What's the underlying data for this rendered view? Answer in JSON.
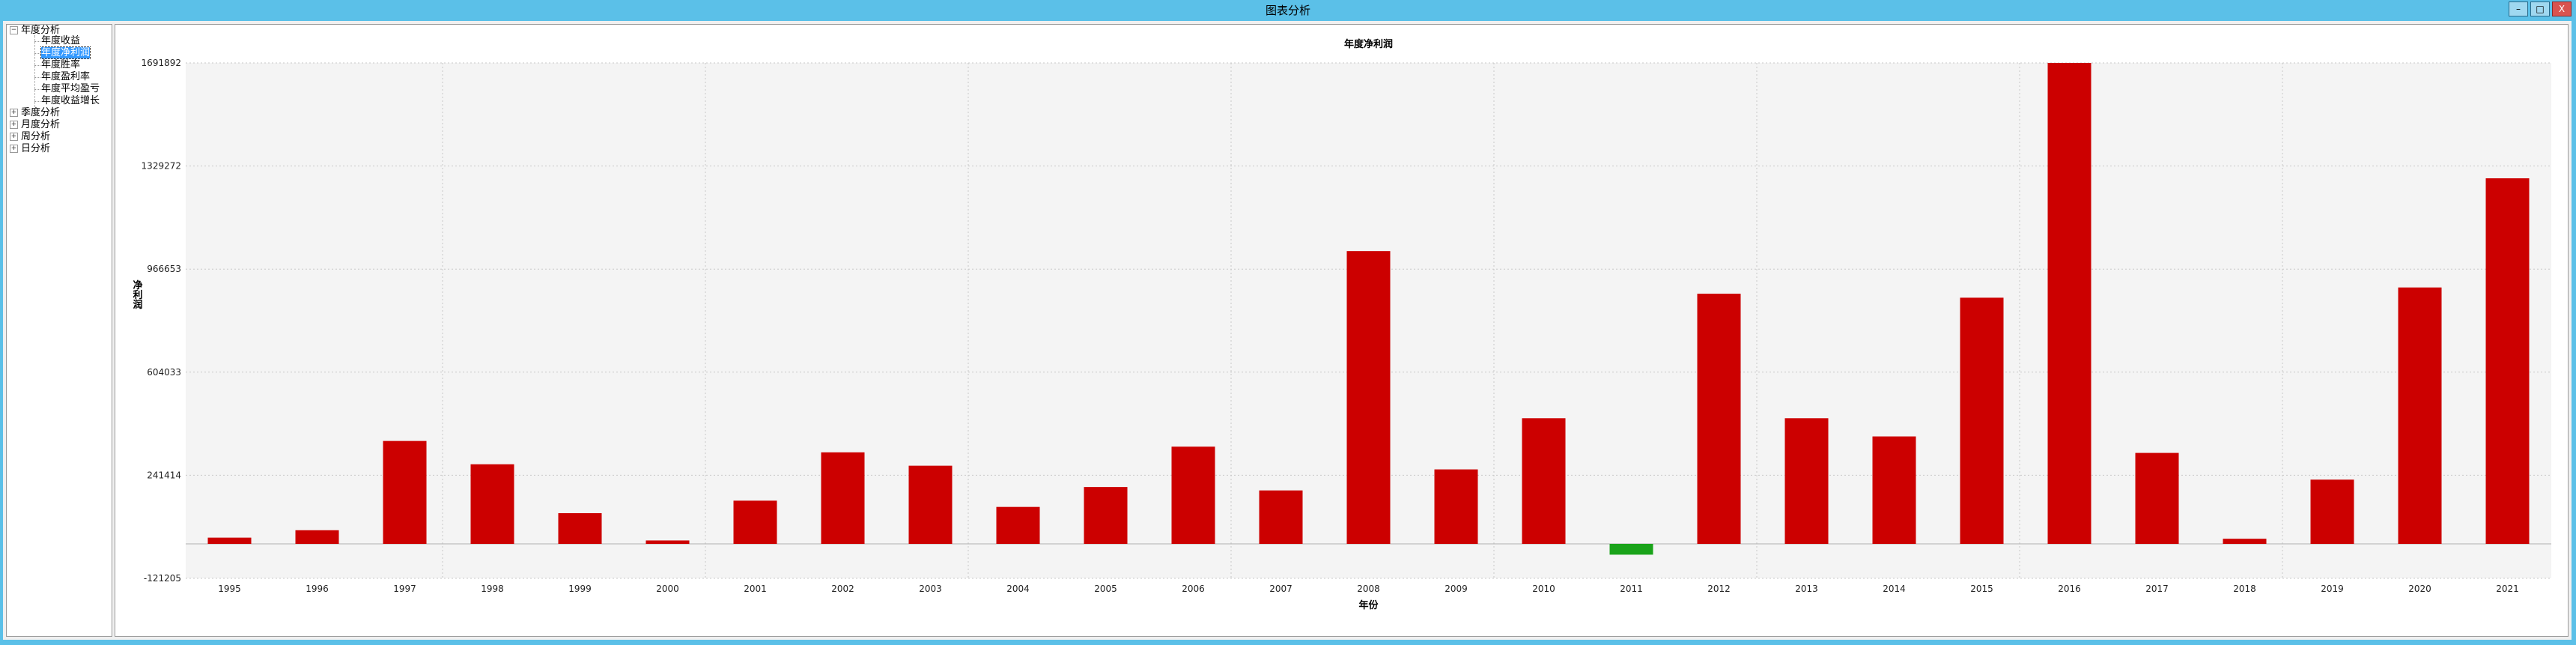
{
  "window": {
    "title": "图表分析",
    "minimize": "–",
    "maximize": "□",
    "close": "X"
  },
  "tree": {
    "root_annual": "年度分析",
    "annual_children": [
      "年度收益",
      "年度净利润",
      "年度胜率",
      "年度盈利率",
      "年度平均盈亏",
      "年度收益增长"
    ],
    "quarterly": "季度分析",
    "monthly": "月度分析",
    "weekly": "周分析",
    "daily": "日分析",
    "selected_index": 1
  },
  "colors": {
    "positive": "#cc0000",
    "negative": "#1aa31a",
    "plot_bg": "#f4f4f4"
  },
  "chart_data": {
    "type": "bar",
    "title": "年度净利润",
    "xlabel": "年份",
    "ylabel": "净利润",
    "ylim": [
      -121205,
      1691892
    ],
    "yticks": [
      -121205,
      241414,
      604033,
      966653,
      1329272,
      1691892
    ],
    "grid": true,
    "categories": [
      "1995",
      "1996",
      "1997",
      "1998",
      "1999",
      "2000",
      "2001",
      "2002",
      "2003",
      "2004",
      "2005",
      "2006",
      "2007",
      "2008",
      "2009",
      "2010",
      "2011",
      "2012",
      "2013",
      "2014",
      "2015",
      "2016",
      "2017",
      "2018",
      "2019",
      "2020",
      "2021"
    ],
    "values": [
      22000,
      48000,
      362000,
      280000,
      108000,
      12000,
      152000,
      322000,
      275000,
      130000,
      200000,
      342000,
      188000,
      1030000,
      262000,
      442000,
      -38000,
      880000,
      442000,
      378000,
      866000,
      1691892,
      320000,
      18000,
      226000,
      902000,
      1286000
    ]
  }
}
